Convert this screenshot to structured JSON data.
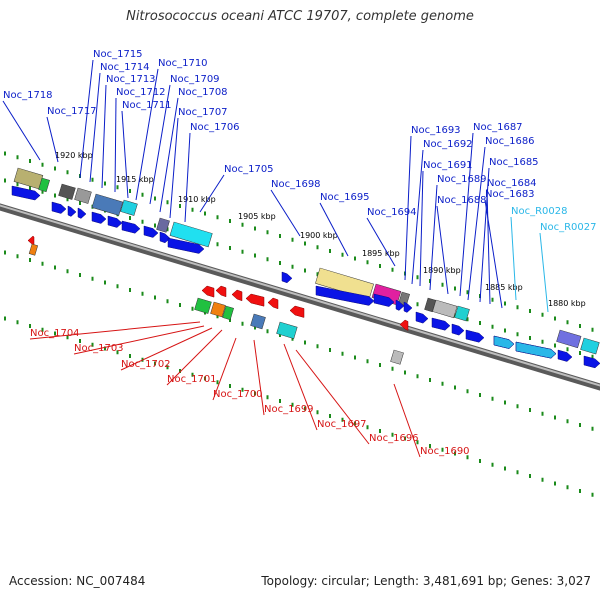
{
  "title": "Nitrosococcus oceani ATCC 19707, complete genome",
  "footer": {
    "accession": "Accession: NC_007484",
    "stats": "Topology: circular; Length: 3,481,691 bp; Genes: 3,027"
  },
  "colors": {
    "forward_label": "#0b1ec8",
    "reverse_label": "#d61414",
    "rna_label": "#2ab7e8",
    "backbone": "#8c8c8c",
    "forward_arrow": "#0a14e6",
    "reverse_arrow": "#f01010",
    "tick": "#1a8a1a"
  },
  "scale_labels": [
    "1920 kbp",
    "1915 kbp",
    "1910 kbp",
    "1905 kbp",
    "1900 kbp",
    "1895 kbp",
    "1890 kbp",
    "1885 kbp",
    "1880 kbp"
  ],
  "forward_genes": [
    "Noc_1715",
    "Noc_1714",
    "Noc_1713",
    "Noc_1712",
    "Noc_1711",
    "Noc_1710",
    "Noc_1709",
    "Noc_1708",
    "Noc_1707",
    "Noc_1706",
    "Noc_1718",
    "Noc_1717",
    "Noc_1705",
    "Noc_1698",
    "Noc_1695",
    "Noc_1694",
    "Noc_1693",
    "Noc_1692",
    "Noc_1691",
    "Noc_1689",
    "Noc_1688",
    "Noc_1687",
    "Noc_1686",
    "Noc_1685",
    "Noc_1684",
    "Noc_1683"
  ],
  "rna_genes": [
    "Noc_R0028",
    "Noc_R0027"
  ],
  "reverse_genes": [
    "Noc_1704",
    "Noc_1703",
    "Noc_1702",
    "Noc_1701",
    "Noc_1700",
    "Noc_1699",
    "Noc_1697",
    "Noc_1696",
    "Noc_1690"
  ]
}
